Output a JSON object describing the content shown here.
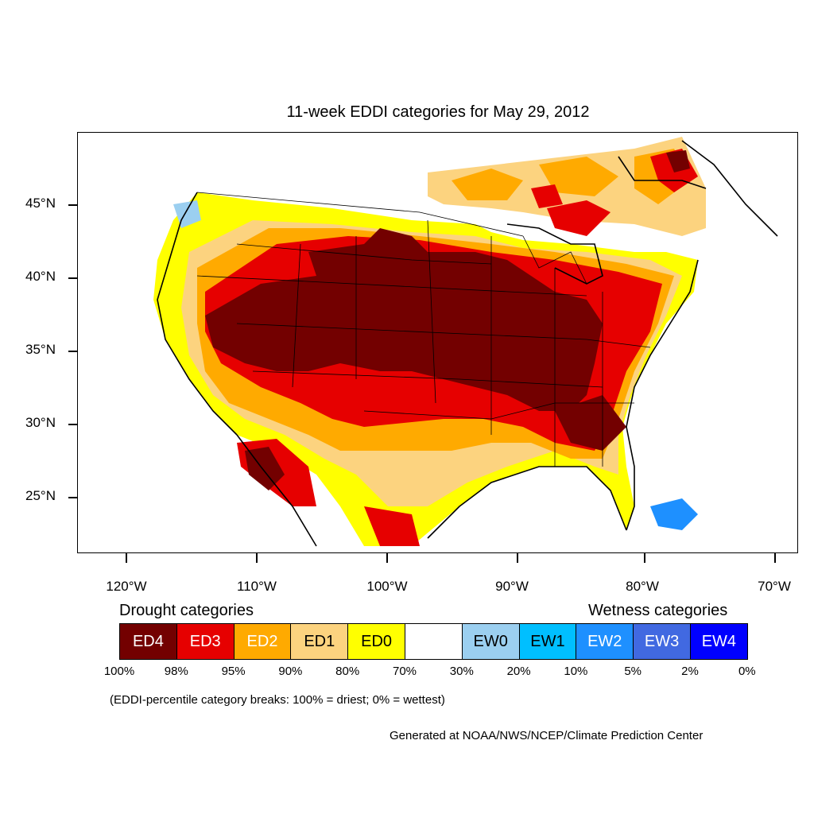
{
  "title": "11-week EDDI categories for May 29, 2012",
  "lat_axis": [
    "45°N",
    "40°N",
    "35°N",
    "30°N",
    "25°N"
  ],
  "lon_axis": [
    "120°W",
    "110°W",
    "100°W",
    "90°W",
    "80°W",
    "70°W"
  ],
  "legend": {
    "drought_heading": "Drought categories",
    "wetness_heading": "Wetness categories",
    "categories": [
      {
        "label": "ED4",
        "color": "#730000",
        "text_color": "#ffffff"
      },
      {
        "label": "ED3",
        "color": "#e60000",
        "text_color": "#ffffff"
      },
      {
        "label": "ED2",
        "color": "#ffaa00",
        "text_color": "#ffffff"
      },
      {
        "label": "ED1",
        "color": "#fcd37f",
        "text_color": "#000000"
      },
      {
        "label": "ED0",
        "color": "#ffff00",
        "text_color": "#000000"
      },
      {
        "label": "",
        "color": "#ffffff",
        "text_color": "#000000"
      },
      {
        "label": "EW0",
        "color": "#9bcff0",
        "text_color": "#000000"
      },
      {
        "label": "EW1",
        "color": "#00bfff",
        "text_color": "#000000"
      },
      {
        "label": "EW2",
        "color": "#1e90ff",
        "text_color": "#ffffff"
      },
      {
        "label": "EW3",
        "color": "#4169e1",
        "text_color": "#ffffff"
      },
      {
        "label": "EW4",
        "color": "#0000ff",
        "text_color": "#ffffff"
      }
    ],
    "breaks": [
      "100%",
      "98%",
      "95%",
      "90%",
      "80%",
      "70%",
      "30%",
      "20%",
      "10%",
      "5%",
      "2%",
      "0%"
    ]
  },
  "breaks_note": "(EDDI-percentile category breaks: 100% = driest; 0% = wettest)",
  "credit": "Generated at NOAA/NWS/NCEP/Climate Prediction Center"
}
